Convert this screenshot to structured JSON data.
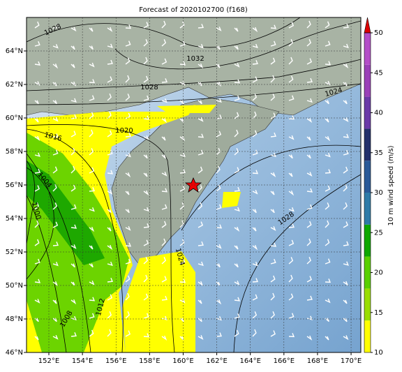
{
  "map": {
    "title": "Forecast of 2020102700 (f168)",
    "lonlim": [
      150.67,
      170.58
    ],
    "latlim": [
      46,
      66
    ],
    "lonticks": [
      {
        "value": 152,
        "label": "152°E"
      },
      {
        "value": 154,
        "label": "154°E"
      },
      {
        "value": 156,
        "label": "156°E"
      },
      {
        "value": 158,
        "label": "158°E"
      },
      {
        "value": 160,
        "label": "160°E"
      },
      {
        "value": 162,
        "label": "162°E"
      },
      {
        "value": 164,
        "label": "164°E"
      },
      {
        "value": 166,
        "label": "166°E"
      },
      {
        "value": 168,
        "label": "168°E"
      },
      {
        "value": 170,
        "label": "170°E"
      }
    ],
    "latticks": [
      {
        "value": 46,
        "label": "46°N"
      },
      {
        "value": 48,
        "label": "48°N"
      },
      {
        "value": 50,
        "label": "50°N"
      },
      {
        "value": 52,
        "label": "52°N"
      },
      {
        "value": 54,
        "label": "54°N"
      },
      {
        "value": 56,
        "label": "56°N"
      },
      {
        "value": 58,
        "label": "58°N"
      },
      {
        "value": 60,
        "label": "60°N"
      },
      {
        "value": 62,
        "label": "62°N"
      },
      {
        "value": 64,
        "label": "64°N"
      }
    ],
    "isobars": [
      "1028",
      "1032",
      "1028",
      "1024",
      "1020",
      "1016",
      "1004",
      "1000",
      "1024",
      "1028",
      "1012",
      "1008"
    ]
  },
  "colorbar": {
    "label": "10 m wind speed (m/s)",
    "lim": [
      10,
      50
    ],
    "ticks": [
      10,
      15,
      20,
      25,
      30,
      35,
      40,
      45,
      50
    ],
    "colors": [
      "#ffff00",
      "#9ade00",
      "#5ad000",
      "#0ea800",
      "#2f7ba8",
      "#2a5a98",
      "#23306b",
      "#6a3aa8",
      "#9a40b8",
      "#b44ec8"
    ],
    "extend_color": "#dd0000"
  }
}
